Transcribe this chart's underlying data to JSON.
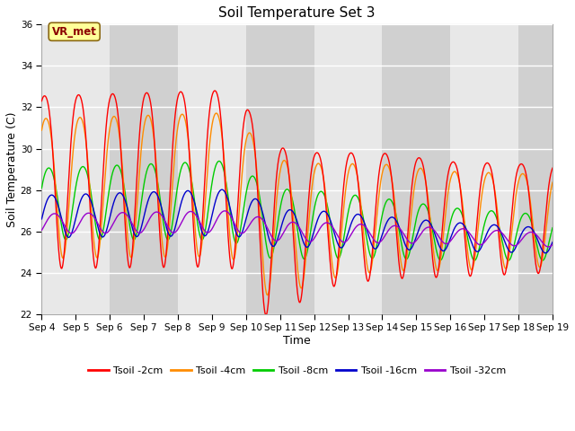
{
  "title": "Soil Temperature Set 3",
  "xlabel": "Time",
  "ylabel": "Soil Temperature (C)",
  "ylim": [
    22,
    36
  ],
  "yticks": [
    22,
    24,
    26,
    28,
    30,
    32,
    34,
    36
  ],
  "bg_color_light": "#e8e8e8",
  "bg_color_dark": "#d0d0d0",
  "annotation_text": "VR_met",
  "annotation_color": "#8B0000",
  "annotation_bg": "#FFFF99",
  "annotation_border": "#8B6914",
  "colors": {
    "Tsoil -2cm": "#ff0000",
    "Tsoil -4cm": "#ff8c00",
    "Tsoil -8cm": "#00cc00",
    "Tsoil -16cm": "#0000cc",
    "Tsoil -32cm": "#9900cc"
  },
  "legend_labels": [
    "Tsoil -2cm",
    "Tsoil -4cm",
    "Tsoil -8cm",
    "Tsoil -16cm",
    "Tsoil -32cm"
  ]
}
